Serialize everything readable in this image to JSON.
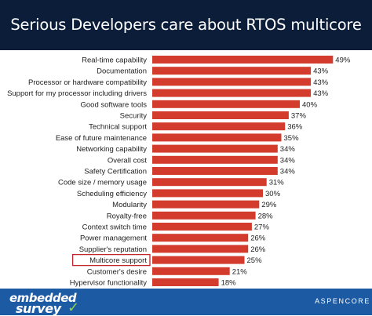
{
  "header": {
    "title": "Serious Developers care about RTOS multicore"
  },
  "footer": {
    "logo_line1": "embedded",
    "logo_line2": "survey",
    "brand": "ASPENCORE"
  },
  "colors": {
    "bar": "#d33b2d",
    "highlight_box": "#c0262e",
    "header_bg": "#0c1d3a",
    "footer_bg": "#1c5aa3"
  },
  "chart_data": {
    "type": "bar",
    "orientation": "horizontal",
    "categories": [
      "Real-time capability",
      "Documentation",
      "Processor or hardware compatibility",
      "Support for my processor including drivers",
      "Good software tools",
      "Security",
      "Technical support",
      "Ease of future maintenance",
      "Networking capability",
      "Overall cost",
      "Safety Certification",
      "Code size / memory usage",
      "Scheduling efficiency",
      "Modularity",
      "Royalty-free",
      "Context switch time",
      "Power management",
      "Supplier's reputation",
      "Multicore support",
      "Customer's desire",
      "Hypervisor functionality"
    ],
    "values": [
      49,
      43,
      43,
      43,
      40,
      37,
      36,
      35,
      34,
      34,
      34,
      31,
      30,
      29,
      28,
      27,
      26,
      26,
      25,
      21,
      18
    ],
    "data_labels": [
      "49%",
      "43%",
      "43%",
      "43%",
      "40%",
      "37%",
      "36%",
      "35%",
      "34%",
      "34%",
      "34%",
      "31%",
      "30%",
      "29%",
      "28%",
      "27%",
      "26%",
      "26%",
      "25%",
      "21%",
      "18%"
    ],
    "highlighted_category": "Multicore support",
    "xlim": [
      0,
      50
    ],
    "grid": false,
    "legend": "none"
  }
}
